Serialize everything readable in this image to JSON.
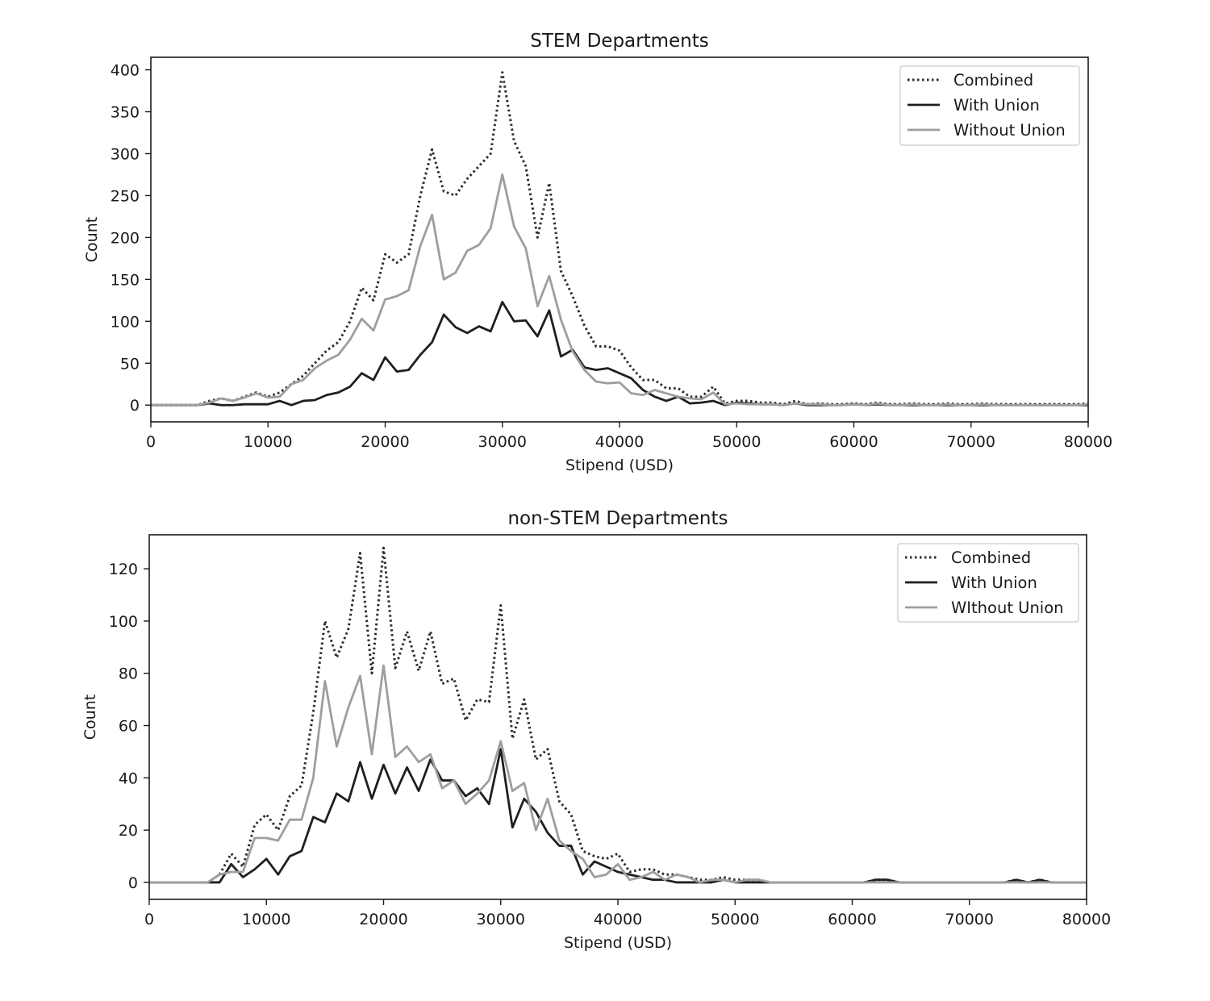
{
  "colors": {
    "combined": "#2b2b2b",
    "with_union": "#1f1f1f",
    "without_union": "#9e9e9e",
    "axes": "#1a1a1a",
    "legend_border": "#cccccc"
  },
  "chart_data": [
    {
      "type": "line",
      "title": "STEM Departments",
      "xlabel": "Stipend (USD)",
      "ylabel": "Count",
      "xlim": [
        0,
        80000
      ],
      "ylim": [
        -20,
        415
      ],
      "xticks": [
        0,
        10000,
        20000,
        30000,
        40000,
        50000,
        60000,
        70000,
        80000
      ],
      "yticks": [
        0,
        50,
        100,
        150,
        200,
        250,
        300,
        350,
        400
      ],
      "grid": false,
      "legend_position": "top-right",
      "x": [
        0,
        1000,
        2000,
        3000,
        4000,
        5000,
        6000,
        7000,
        8000,
        9000,
        10000,
        11000,
        12000,
        13000,
        14000,
        15000,
        16000,
        17000,
        18000,
        19000,
        20000,
        21000,
        22000,
        23000,
        24000,
        25000,
        26000,
        27000,
        28000,
        29000,
        30000,
        31000,
        32000,
        33000,
        34000,
        35000,
        36000,
        37000,
        38000,
        39000,
        40000,
        41000,
        42000,
        43000,
        44000,
        45000,
        46000,
        47000,
        48000,
        49000,
        50000,
        51000,
        52000,
        53000,
        54000,
        55000,
        56000,
        57000,
        58000,
        59000,
        60000,
        61000,
        62000,
        63000,
        64000,
        65000,
        66000,
        67000,
        68000,
        69000,
        70000,
        71000,
        72000,
        73000,
        74000,
        75000,
        76000,
        77000,
        78000,
        79000,
        80000
      ],
      "series": [
        {
          "name": "Combined",
          "style": "dotted",
          "values": [
            0,
            0,
            0,
            0,
            0,
            5,
            8,
            5,
            10,
            15,
            10,
            15,
            25,
            35,
            50,
            65,
            75,
            100,
            140,
            125,
            180,
            170,
            180,
            250,
            305,
            255,
            250,
            270,
            285,
            300,
            397,
            315,
            285,
            200,
            265,
            160,
            130,
            95,
            70,
            70,
            65,
            45,
            30,
            30,
            20,
            20,
            10,
            10,
            22,
            2,
            5,
            5,
            3,
            3,
            1,
            5,
            1,
            2,
            1,
            1,
            2,
            1,
            3,
            1,
            1,
            2,
            1,
            1,
            2,
            1,
            1,
            2,
            1,
            1,
            1,
            1,
            1,
            1,
            1,
            1,
            2
          ]
        },
        {
          "name": "With Union",
          "style": "solid",
          "values": [
            0,
            0,
            0,
            0,
            0,
            2,
            0,
            0,
            1,
            1,
            1,
            5,
            0,
            5,
            6,
            12,
            15,
            22,
            38,
            30,
            57,
            40,
            42,
            60,
            75,
            108,
            93,
            86,
            94,
            88,
            123,
            100,
            101,
            82,
            113,
            58,
            66,
            45,
            42,
            44,
            38,
            32,
            18,
            10,
            5,
            10,
            2,
            3,
            5,
            0,
            3,
            2,
            1,
            1,
            0,
            2,
            0,
            0,
            0,
            0,
            1,
            0,
            1,
            0,
            0,
            0,
            0,
            0,
            0,
            0,
            0,
            0,
            0,
            0,
            0,
            0,
            0,
            0,
            0,
            0,
            0
          ]
        },
        {
          "name": "Without Union",
          "style": "solid",
          "values": [
            0,
            0,
            0,
            0,
            0,
            3,
            8,
            5,
            9,
            14,
            9,
            10,
            25,
            30,
            44,
            53,
            60,
            78,
            103,
            89,
            126,
            130,
            137,
            190,
            227,
            150,
            158,
            184,
            191,
            211,
            275,
            213,
            187,
            118,
            154,
            102,
            64,
            42,
            28,
            26,
            27,
            14,
            12,
            18,
            14,
            10,
            8,
            7,
            15,
            1,
            2,
            1,
            1,
            1,
            0,
            2,
            1,
            1,
            0,
            0,
            1,
            0,
            2,
            0,
            0,
            1,
            0,
            0,
            1,
            0,
            0,
            1,
            0,
            0,
            0,
            0,
            0,
            0,
            0,
            0,
            1
          ]
        }
      ]
    },
    {
      "type": "line",
      "title": "non-STEM Departments",
      "xlabel": "Stipend (USD)",
      "ylabel": "Count",
      "xlim": [
        0,
        80000
      ],
      "ylim": [
        -6.5,
        133
      ],
      "xticks": [
        0,
        10000,
        20000,
        30000,
        40000,
        50000,
        60000,
        70000,
        80000
      ],
      "yticks": [
        0,
        20,
        40,
        60,
        80,
        100,
        120
      ],
      "grid": false,
      "legend_position": "top-right",
      "x": [
        0,
        1000,
        2000,
        3000,
        4000,
        5000,
        6000,
        7000,
        8000,
        9000,
        10000,
        11000,
        12000,
        13000,
        14000,
        15000,
        16000,
        17000,
        18000,
        19000,
        20000,
        21000,
        22000,
        23000,
        24000,
        25000,
        26000,
        27000,
        28000,
        29000,
        30000,
        31000,
        32000,
        33000,
        34000,
        35000,
        36000,
        37000,
        38000,
        39000,
        40000,
        41000,
        42000,
        43000,
        44000,
        45000,
        46000,
        47000,
        48000,
        49000,
        50000,
        51000,
        52000,
        53000,
        54000,
        55000,
        56000,
        57000,
        58000,
        59000,
        60000,
        61000,
        62000,
        63000,
        64000,
        65000,
        66000,
        67000,
        68000,
        69000,
        70000,
        71000,
        72000,
        73000,
        74000,
        75000,
        76000,
        77000,
        78000,
        79000,
        80000
      ],
      "series": [
        {
          "name": "Combined",
          "style": "dotted",
          "values": [
            0,
            0,
            0,
            0,
            0,
            0,
            3,
            11,
            6,
            22,
            26,
            20,
            33,
            37,
            65,
            100,
            86,
            97,
            126,
            80,
            128,
            82,
            96,
            81,
            96,
            76,
            78,
            62,
            70,
            69,
            106,
            55,
            70,
            47,
            51,
            31,
            26,
            12,
            10,
            9,
            11,
            4,
            5,
            5,
            3,
            3,
            2,
            1,
            1,
            2,
            1,
            1,
            1,
            0,
            0,
            0,
            0,
            0,
            0,
            0,
            0,
            0,
            1,
            1,
            0,
            0,
            0,
            0,
            0,
            0,
            0,
            0,
            0,
            0,
            1,
            0,
            1,
            0,
            0,
            0,
            0
          ]
        },
        {
          "name": "With Union",
          "style": "solid",
          "values": [
            0,
            0,
            0,
            0,
            0,
            0,
            0,
            7,
            2,
            5,
            9,
            3,
            10,
            12,
            25,
            23,
            34,
            31,
            46,
            32,
            45,
            34,
            44,
            35,
            47,
            39,
            39,
            33,
            36,
            30,
            51,
            21,
            32,
            27,
            19,
            14,
            14,
            3,
            8,
            6,
            4,
            3,
            2,
            1,
            1,
            0,
            0,
            0,
            0,
            1,
            0,
            0,
            0,
            0,
            0,
            0,
            0,
            0,
            0,
            0,
            0,
            0,
            1,
            1,
            0,
            0,
            0,
            0,
            0,
            0,
            0,
            0,
            0,
            0,
            1,
            0,
            1,
            0,
            0,
            0,
            0
          ]
        },
        {
          "name": "WIthout Union",
          "style": "solid",
          "values": [
            0,
            0,
            0,
            0,
            0,
            0,
            3,
            4,
            4,
            17,
            17,
            16,
            24,
            24,
            40,
            77,
            52,
            67,
            79,
            49,
            83,
            48,
            52,
            46,
            49,
            36,
            39,
            30,
            34,
            39,
            54,
            35,
            38,
            20,
            32,
            16,
            12,
            9,
            2,
            3,
            7,
            1,
            2,
            4,
            1,
            3,
            2,
            0,
            1,
            1,
            0,
            1,
            1,
            0,
            0,
            0,
            0,
            0,
            0,
            0,
            0,
            0,
            0,
            0,
            0,
            0,
            0,
            0,
            0,
            0,
            0,
            0,
            0,
            0,
            0,
            0,
            0,
            0,
            0,
            0,
            0
          ]
        }
      ]
    }
  ]
}
